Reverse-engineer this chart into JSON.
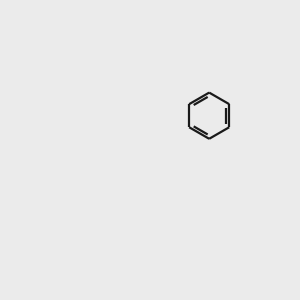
{
  "background_color": "#ebebeb",
  "bond_color": "#1a1a1a",
  "atom_colors": {
    "N": "#0000ff",
    "O": "#ff0000",
    "S": "#cccc00",
    "I": "#cc00cc",
    "H": "#000000",
    "C": "#1a1a1a"
  },
  "figsize": [
    3.0,
    3.0
  ],
  "dpi": 100,
  "lw": 1.6,
  "fs": 8.5
}
